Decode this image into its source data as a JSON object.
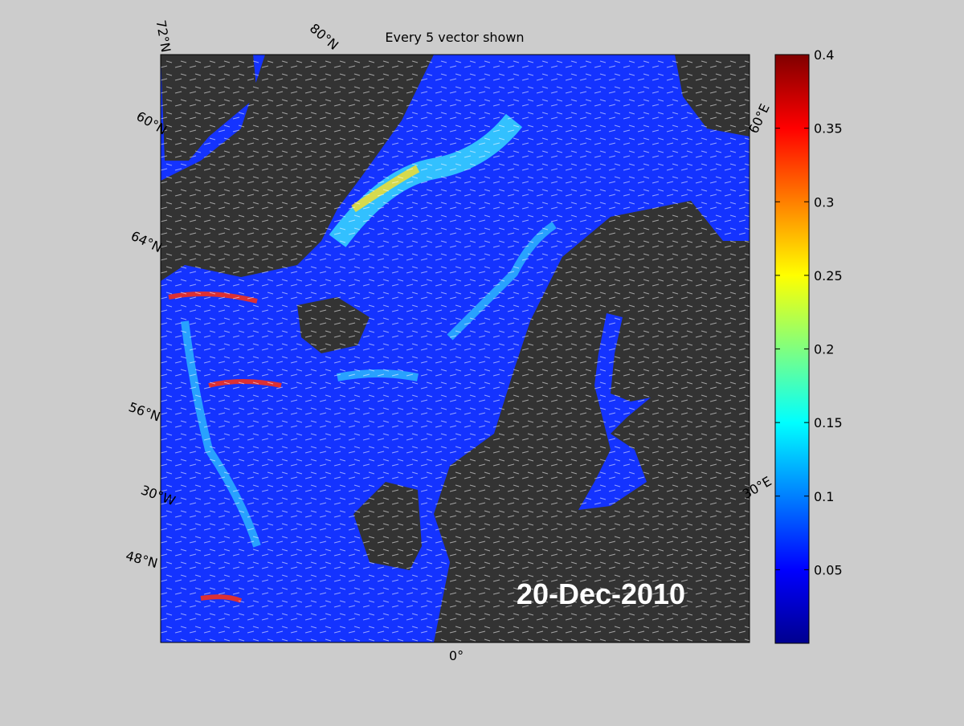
{
  "title": "Every 5 vector shown",
  "date_label": "20-Dec-2010",
  "graticule_labels": [
    "72°N",
    "80°N",
    "60°N",
    "64°N",
    "56°N",
    "30°W",
    "48°N",
    "0°",
    "60°E",
    "30°E"
  ],
  "colorbar": {
    "ylim": [
      0,
      0.4
    ],
    "ticks": [
      0.05,
      0.1,
      0.15,
      0.2,
      0.25,
      0.3,
      0.35,
      0.4
    ]
  }
}
